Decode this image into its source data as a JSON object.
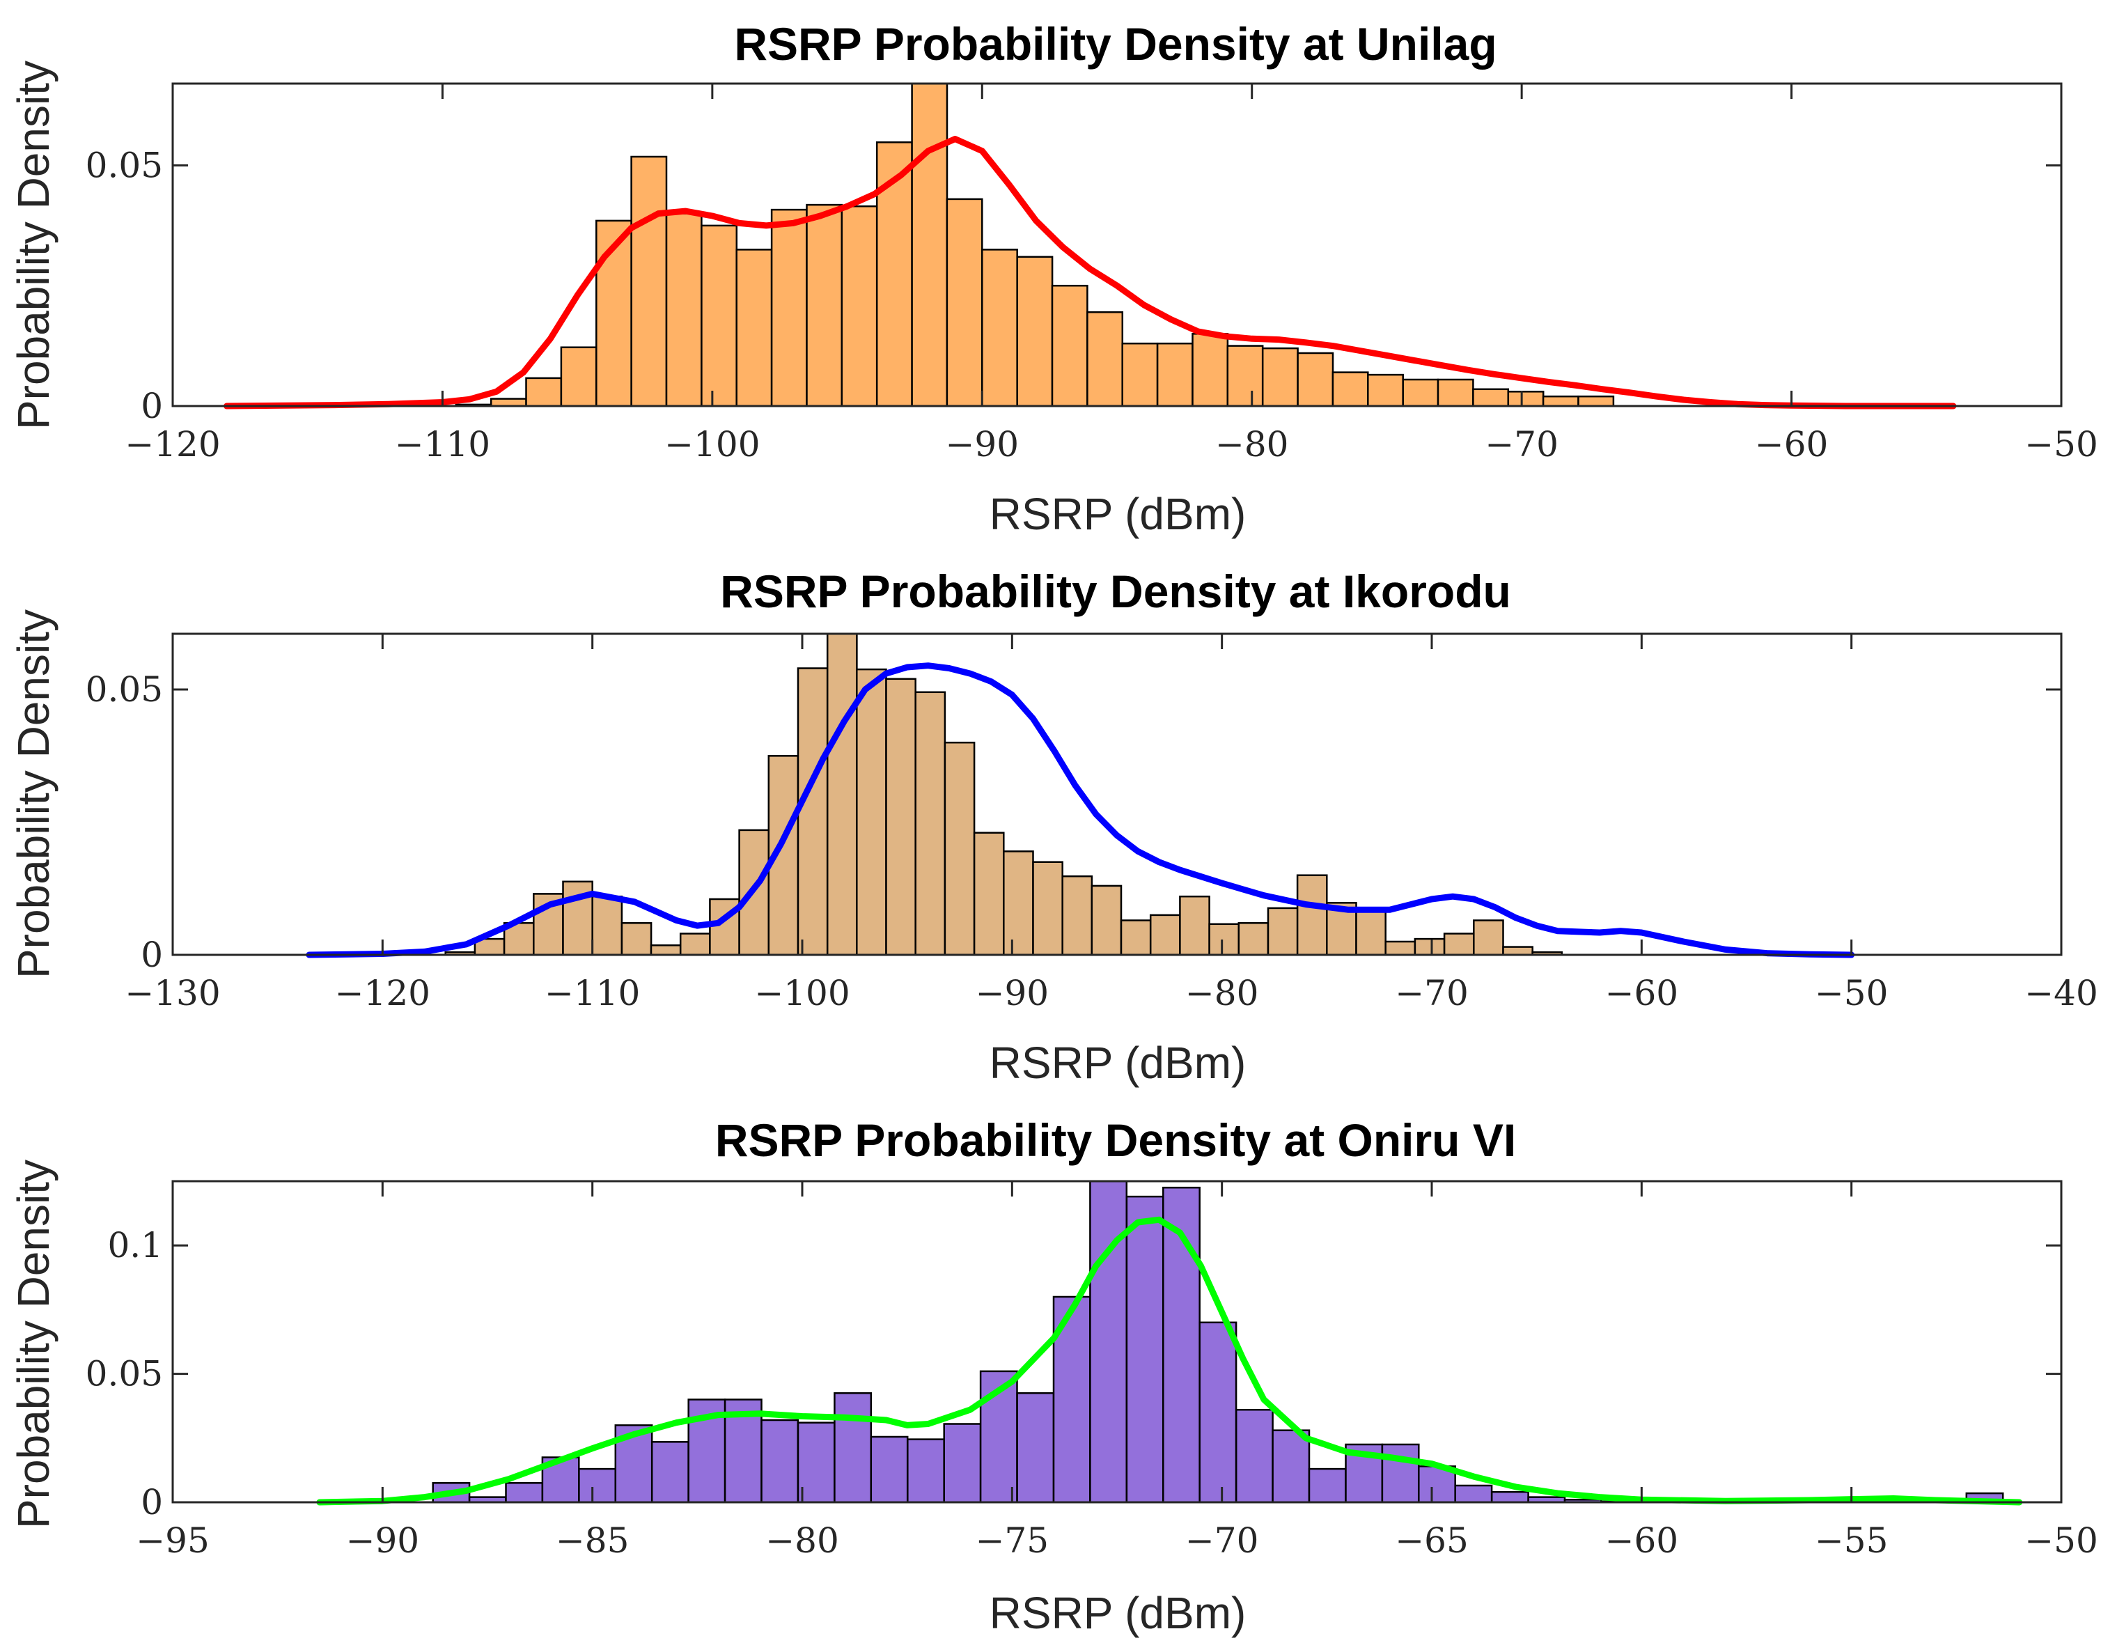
{
  "chart_data": [
    {
      "type": "bar",
      "title": "RSRP Probability Density at Unilag",
      "xlabel": "RSRP (dBm)",
      "ylabel": "Probability Density",
      "xlim": [
        -120,
        -50
      ],
      "ylim": [
        0,
        0.067
      ],
      "xticks": [
        -120,
        -110,
        -100,
        -90,
        -80,
        -70,
        -60,
        -50
      ],
      "xtick_labels": [
        "−120",
        "−110",
        "−100",
        "−90",
        "−80",
        "−70",
        "−60",
        "−50"
      ],
      "yticks": [
        0,
        0.05
      ],
      "ytick_labels": [
        "0",
        "0.05"
      ],
      "bar_color": "#FFB266",
      "curve_color": "#FF0000",
      "bin_start": -109.5,
      "bin_width": 1.3,
      "values": [
        0.0003,
        0.0015,
        0.0058,
        0.0122,
        0.0385,
        0.0518,
        0.04,
        0.0375,
        0.0325,
        0.0408,
        0.0418,
        0.0415,
        0.0548,
        0.067,
        0.043,
        0.0325,
        0.031,
        0.025,
        0.0195,
        0.013,
        0.013,
        0.015,
        0.0125,
        0.012,
        0.011,
        0.007,
        0.0065,
        0.0055,
        0.0055,
        0.0035,
        0.003,
        0.002,
        0.002
      ],
      "density_curve": {
        "x": [
          -118,
          -114,
          -112,
          -110,
          -109,
          -108,
          -107,
          -106,
          -105,
          -104,
          -103,
          -102,
          -101,
          -100,
          -99,
          -98,
          -97,
          -96,
          -95,
          -94,
          -93,
          -92,
          -91,
          -90,
          -89,
          -88,
          -87,
          -86,
          -85,
          -84,
          -83,
          -82,
          -81,
          -80,
          -79,
          -78,
          -77,
          -76,
          -75,
          -74,
          -73,
          -72,
          -71,
          -70,
          -69,
          -68,
          -67,
          -66,
          -65,
          -64,
          -63,
          -62,
          -61,
          -60,
          -58,
          -56,
          -54
        ],
        "y": [
          0,
          0.0002,
          0.0004,
          0.0008,
          0.0014,
          0.003,
          0.007,
          0.014,
          0.023,
          0.031,
          0.037,
          0.04,
          0.0405,
          0.0395,
          0.038,
          0.0375,
          0.038,
          0.0395,
          0.0415,
          0.044,
          0.048,
          0.053,
          0.0555,
          0.053,
          0.046,
          0.0385,
          0.033,
          0.0285,
          0.025,
          0.021,
          0.018,
          0.0155,
          0.0145,
          0.014,
          0.0138,
          0.0132,
          0.0125,
          0.0115,
          0.0105,
          0.0095,
          0.0085,
          0.0075,
          0.0066,
          0.0058,
          0.005,
          0.0043,
          0.0035,
          0.0028,
          0.002,
          0.0013,
          0.0008,
          0.0004,
          0.0002,
          0.0001,
          0,
          0,
          0
        ]
      }
    },
    {
      "type": "bar",
      "title": "RSRP Probability Density at Ikorodu",
      "xlabel": "RSRP (dBm)",
      "ylabel": "Probability Density",
      "xlim": [
        -130,
        -40
      ],
      "ylim": [
        0,
        0.0605
      ],
      "xticks": [
        -130,
        -120,
        -110,
        -100,
        -90,
        -80,
        -70,
        -60,
        -50,
        -40
      ],
      "xtick_labels": [
        "−130",
        "−120",
        "−110",
        "−100",
        "−90",
        "−80",
        "−70",
        "−60",
        "−50",
        "−40"
      ],
      "yticks": [
        0,
        0.05
      ],
      "yticks_labels_note": "",
      "ytick_labels": [
        "0",
        "0.05"
      ],
      "bar_color": "#E0B584",
      "curve_color": "#0000FF",
      "bin_start": -117.0,
      "bin_width": 1.4,
      "values": [
        0.0005,
        0.003,
        0.006,
        0.0115,
        0.0138,
        0.011,
        0.006,
        0.0018,
        0.004,
        0.0105,
        0.0235,
        0.0375,
        0.054,
        0.0605,
        0.0538,
        0.052,
        0.0495,
        0.04,
        0.023,
        0.0195,
        0.0175,
        0.0148,
        0.013,
        0.0065,
        0.0075,
        0.011,
        0.0058,
        0.006,
        0.0088,
        0.015,
        0.0098,
        0.0085,
        0.0025,
        0.003,
        0.004,
        0.0065,
        0.0015,
        0.0005
      ],
      "density_curve": {
        "x": [
          -123.5,
          -120,
          -118,
          -116,
          -114,
          -112,
          -110,
          -108,
          -106,
          -105,
          -104,
          -103,
          -102,
          -101,
          -100,
          -99,
          -98,
          -97,
          -96,
          -95,
          -94,
          -93,
          -92,
          -91,
          -90,
          -89,
          -88,
          -87,
          -86,
          -85,
          -84,
          -83,
          -82,
          -80,
          -78,
          -76,
          -74,
          -72,
          -71,
          -70,
          -69,
          -68,
          -67,
          -66,
          -65,
          -64,
          -62,
          -61,
          -60,
          -58,
          -56,
          -54,
          -52,
          -50
        ],
        "y": [
          0,
          0.0002,
          0.0006,
          0.002,
          0.0055,
          0.0095,
          0.0115,
          0.01,
          0.0065,
          0.0055,
          0.006,
          0.009,
          0.014,
          0.021,
          0.029,
          0.037,
          0.044,
          0.05,
          0.053,
          0.0542,
          0.0545,
          0.054,
          0.053,
          0.0515,
          0.049,
          0.0445,
          0.0385,
          0.032,
          0.0265,
          0.0225,
          0.0195,
          0.0175,
          0.016,
          0.0135,
          0.0112,
          0.0095,
          0.0085,
          0.0085,
          0.0095,
          0.0105,
          0.011,
          0.0105,
          0.009,
          0.007,
          0.0055,
          0.0045,
          0.0042,
          0.0045,
          0.0042,
          0.0025,
          0.001,
          0.0003,
          0.0001,
          0
        ]
      }
    },
    {
      "type": "bar",
      "title": "RSRP Probability Density at Oniru VI",
      "xlabel": "RSRP (dBm)",
      "ylabel": "Probability Density",
      "xlim": [
        -95,
        -50
      ],
      "ylim": [
        0,
        0.125
      ],
      "xticks": [
        -95,
        -90,
        -85,
        -80,
        -75,
        -70,
        -65,
        -60,
        -55,
        -50
      ],
      "xtick_labels": [
        "−95",
        "−90",
        "−85",
        "−80",
        "−75",
        "−70",
        "−65",
        "−60",
        "−55",
        "−50"
      ],
      "yticks": [
        0,
        0.05,
        0.1
      ],
      "ytick_labels": [
        "0",
        "0.05",
        "0.1"
      ],
      "bar_color": "#9370DB",
      "curve_color": "#00FF00",
      "bin_start": -88.8,
      "bin_width": 0.87,
      "values": [
        0.0075,
        0.002,
        0.0075,
        0.0175,
        0.013,
        0.03,
        0.0235,
        0.04,
        0.04,
        0.032,
        0.031,
        0.0425,
        0.0255,
        0.0245,
        0.0305,
        0.051,
        0.0425,
        0.08,
        0.125,
        0.119,
        0.1225,
        0.07,
        0.036,
        0.028,
        0.013,
        0.0225,
        0.0225,
        0.014,
        0.0065,
        0.004,
        0.002,
        0.001,
        0.0003,
        0.0,
        0.0,
        0.0,
        0.0,
        0.0,
        0.0,
        0.0,
        0.0,
        0.0,
        0.0035
      ],
      "density_curve": {
        "x": [
          -91.5,
          -90,
          -89,
          -88,
          -87,
          -86,
          -85,
          -84,
          -83,
          -82,
          -81,
          -80,
          -79,
          -78,
          -77.5,
          -77,
          -76,
          -75,
          -74,
          -73.5,
          -73,
          -72.5,
          -72,
          -71.5,
          -71,
          -70.5,
          -70,
          -69.5,
          -69,
          -68,
          -67,
          -66,
          -65,
          -64,
          -63,
          -62,
          -61,
          -60,
          -58,
          -56,
          -55,
          -54,
          -53,
          -51
        ],
        "y": [
          0,
          0.0005,
          0.002,
          0.0045,
          0.009,
          0.015,
          0.021,
          0.0265,
          0.031,
          0.034,
          0.0345,
          0.0335,
          0.033,
          0.032,
          0.03,
          0.0305,
          0.036,
          0.047,
          0.064,
          0.077,
          0.092,
          0.102,
          0.109,
          0.11,
          0.105,
          0.092,
          0.074,
          0.056,
          0.04,
          0.025,
          0.0195,
          0.0175,
          0.015,
          0.01,
          0.006,
          0.0035,
          0.002,
          0.001,
          0.0005,
          0.0008,
          0.0012,
          0.0015,
          0.0008,
          0
        ]
      }
    }
  ]
}
